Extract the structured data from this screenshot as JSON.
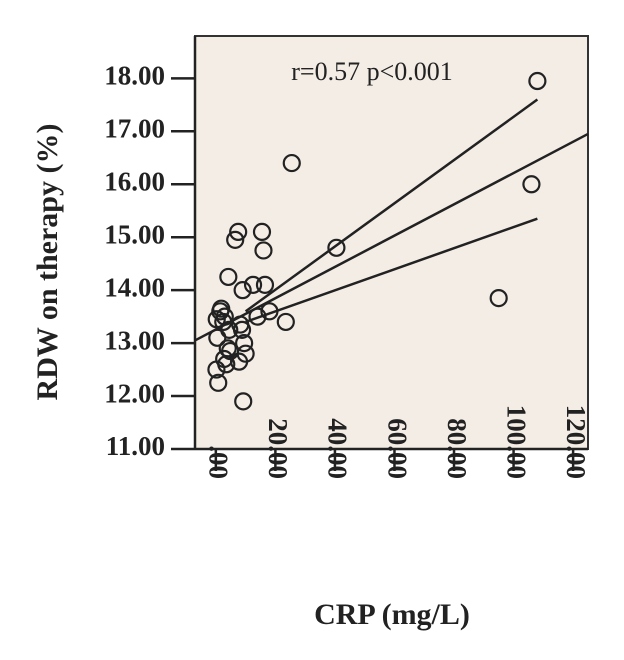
{
  "chart_data": {
    "type": "scatter",
    "title": "",
    "xlabel": "CRP (mg/L)",
    "ylabel": "RDW on therapy (%)",
    "xlim": [
      -7,
      125
    ],
    "ylim": [
      11,
      18.8
    ],
    "x_ticks": [
      ".00",
      "20.00",
      "40.00",
      "60.00",
      "80.00",
      "100.00",
      "120.00"
    ],
    "x_tick_values": [
      0,
      20,
      40,
      60,
      80,
      100,
      120
    ],
    "y_ticks": [
      "11.00",
      "12.00",
      "13.00",
      "14.00",
      "15.00",
      "16.00",
      "17.00",
      "18.00"
    ],
    "y_tick_values": [
      11,
      12,
      13,
      14,
      15,
      16,
      17,
      18
    ],
    "annotation": "r=0.57 p<0.001",
    "grid": false,
    "background_color": "#f4ede6",
    "marker_color": "#222222",
    "points": [
      {
        "x": 0.2,
        "y": 12.5
      },
      {
        "x": 0.8,
        "y": 12.25
      },
      {
        "x": 0.5,
        "y": 13.1
      },
      {
        "x": 0.3,
        "y": 13.45
      },
      {
        "x": 1.5,
        "y": 13.6
      },
      {
        "x": 1.8,
        "y": 13.65
      },
      {
        "x": 2.5,
        "y": 13.4
      },
      {
        "x": 3.0,
        "y": 13.5
      },
      {
        "x": 2.8,
        "y": 12.7
      },
      {
        "x": 3.5,
        "y": 12.6
      },
      {
        "x": 4.0,
        "y": 12.9
      },
      {
        "x": 4.5,
        "y": 13.25
      },
      {
        "x": 4.2,
        "y": 14.25
      },
      {
        "x": 4.8,
        "y": 12.85
      },
      {
        "x": 6.5,
        "y": 14.95
      },
      {
        "x": 7.5,
        "y": 15.1
      },
      {
        "x": 7.8,
        "y": 12.65
      },
      {
        "x": 8.2,
        "y": 13.35
      },
      {
        "x": 8.8,
        "y": 13.25
      },
      {
        "x": 9.2,
        "y": 11.9
      },
      {
        "x": 9.5,
        "y": 13.0
      },
      {
        "x": 10.0,
        "y": 12.8
      },
      {
        "x": 9.0,
        "y": 14.0
      },
      {
        "x": 12.5,
        "y": 14.1
      },
      {
        "x": 14.0,
        "y": 13.5
      },
      {
        "x": 15.5,
        "y": 15.1
      },
      {
        "x": 16.0,
        "y": 14.75
      },
      {
        "x": 16.5,
        "y": 14.1
      },
      {
        "x": 18.0,
        "y": 13.6
      },
      {
        "x": 23.5,
        "y": 13.4
      },
      {
        "x": 25.5,
        "y": 16.4
      },
      {
        "x": 40.5,
        "y": 14.8
      },
      {
        "x": 95.0,
        "y": 13.85
      },
      {
        "x": 106.0,
        "y": 16.0
      },
      {
        "x": 108.0,
        "y": 17.95
      }
    ],
    "fit_line": {
      "x0": -7,
      "y0": 13.05,
      "x1": 125,
      "y1": 16.95
    },
    "ci_upper": {
      "x0": 10,
      "y0": 13.6,
      "x1": 108,
      "y1": 17.6
    },
    "ci_lower": {
      "x0": 10,
      "y0": 13.4,
      "x1": 108,
      "y1": 15.35
    }
  }
}
